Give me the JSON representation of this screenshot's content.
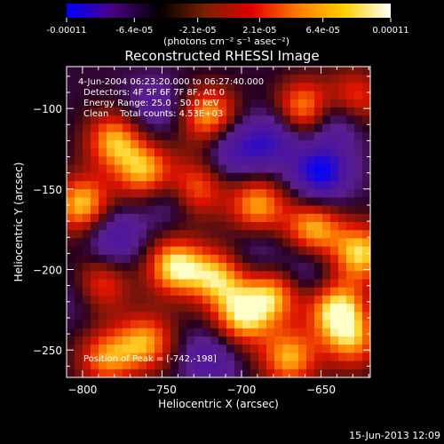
{
  "chart_data": {
    "type": "heatmap",
    "title": "Reconstructed RHESSI Image",
    "colorbar": {
      "ticks": [
        "-0.00011",
        "-6.4e-05",
        "-2.1e-05",
        "2.1e-05",
        "6.4e-05",
        "0.00011"
      ],
      "unit_label": "(photons cm⁻² s⁻¹ asec⁻²)",
      "range": [
        -0.00011,
        0.00011
      ],
      "colors": [
        "#0000ff",
        "#4b0082",
        "#000000",
        "#7a1f00",
        "#e00000",
        "#ff7a00",
        "#ffd000",
        "#ffffff"
      ]
    },
    "xlabel": "Heliocentric X (arcsec)",
    "ylabel": "Heliocentric Y (arcsec)",
    "xlim": [
      -810,
      -619
    ],
    "ylim": [
      -267,
      -74
    ],
    "xticks": [
      -800,
      -750,
      -700,
      -650
    ],
    "yticks": [
      -100,
      -150,
      -200,
      -250
    ],
    "annotations": [
      "4-Jun-2004 06:23:20.000 to 06:27:40.000",
      "Detectors: 4F 5F 6F 7F 8F, Att 0",
      "Energy Range: 25.0 - 50.0 keV",
      "Clean    Total counts: 4.53E+03"
    ],
    "peak_label": "Position of Peak = [-742,-198]",
    "peak": [
      -742,
      -198
    ],
    "features": [
      {
        "x": -720,
        "y": -105,
        "v": 0.9
      },
      {
        "x": -660,
        "y": -100,
        "v": 0.9
      },
      {
        "x": -630,
        "y": -95,
        "v": 0.8
      },
      {
        "x": -780,
        "y": -120,
        "v": 0.85
      },
      {
        "x": -760,
        "y": -140,
        "v": 0.9
      },
      {
        "x": -730,
        "y": -150,
        "v": 0.8
      },
      {
        "x": -690,
        "y": -160,
        "v": 0.85
      },
      {
        "x": -800,
        "y": -160,
        "v": 0.95
      },
      {
        "x": -655,
        "y": -175,
        "v": 0.9
      },
      {
        "x": -625,
        "y": -190,
        "v": 0.95
      },
      {
        "x": -742,
        "y": -198,
        "v": 1.0
      },
      {
        "x": -715,
        "y": -205,
        "v": 0.85
      },
      {
        "x": -790,
        "y": -210,
        "v": 0.8
      },
      {
        "x": -680,
        "y": -215,
        "v": 0.85
      },
      {
        "x": -640,
        "y": -225,
        "v": 1.0
      },
      {
        "x": -700,
        "y": -230,
        "v": 0.9
      },
      {
        "x": -760,
        "y": -245,
        "v": 0.8
      },
      {
        "x": -670,
        "y": -255,
        "v": 0.85
      },
      {
        "x": -785,
        "y": -255,
        "v": 0.75
      },
      {
        "x": -630,
        "y": -245,
        "v": 0.7
      },
      {
        "x": -745,
        "y": -155,
        "v": -0.5
      },
      {
        "x": -780,
        "y": -180,
        "v": -0.6
      },
      {
        "x": -705,
        "y": -125,
        "v": -0.6
      },
      {
        "x": -650,
        "y": -140,
        "v": -0.9
      },
      {
        "x": -640,
        "y": -105,
        "v": -0.7
      },
      {
        "x": -800,
        "y": -215,
        "v": -0.4
      },
      {
        "x": -720,
        "y": -255,
        "v": -0.5
      },
      {
        "x": -660,
        "y": -200,
        "v": -0.4
      },
      {
        "x": -690,
        "y": -190,
        "v": -0.3
      },
      {
        "x": -755,
        "y": -100,
        "v": -0.4
      },
      {
        "x": -680,
        "y": -120,
        "v": -0.6
      }
    ]
  },
  "footer": {
    "timestamp": "15-Jun-2013 12:09"
  }
}
